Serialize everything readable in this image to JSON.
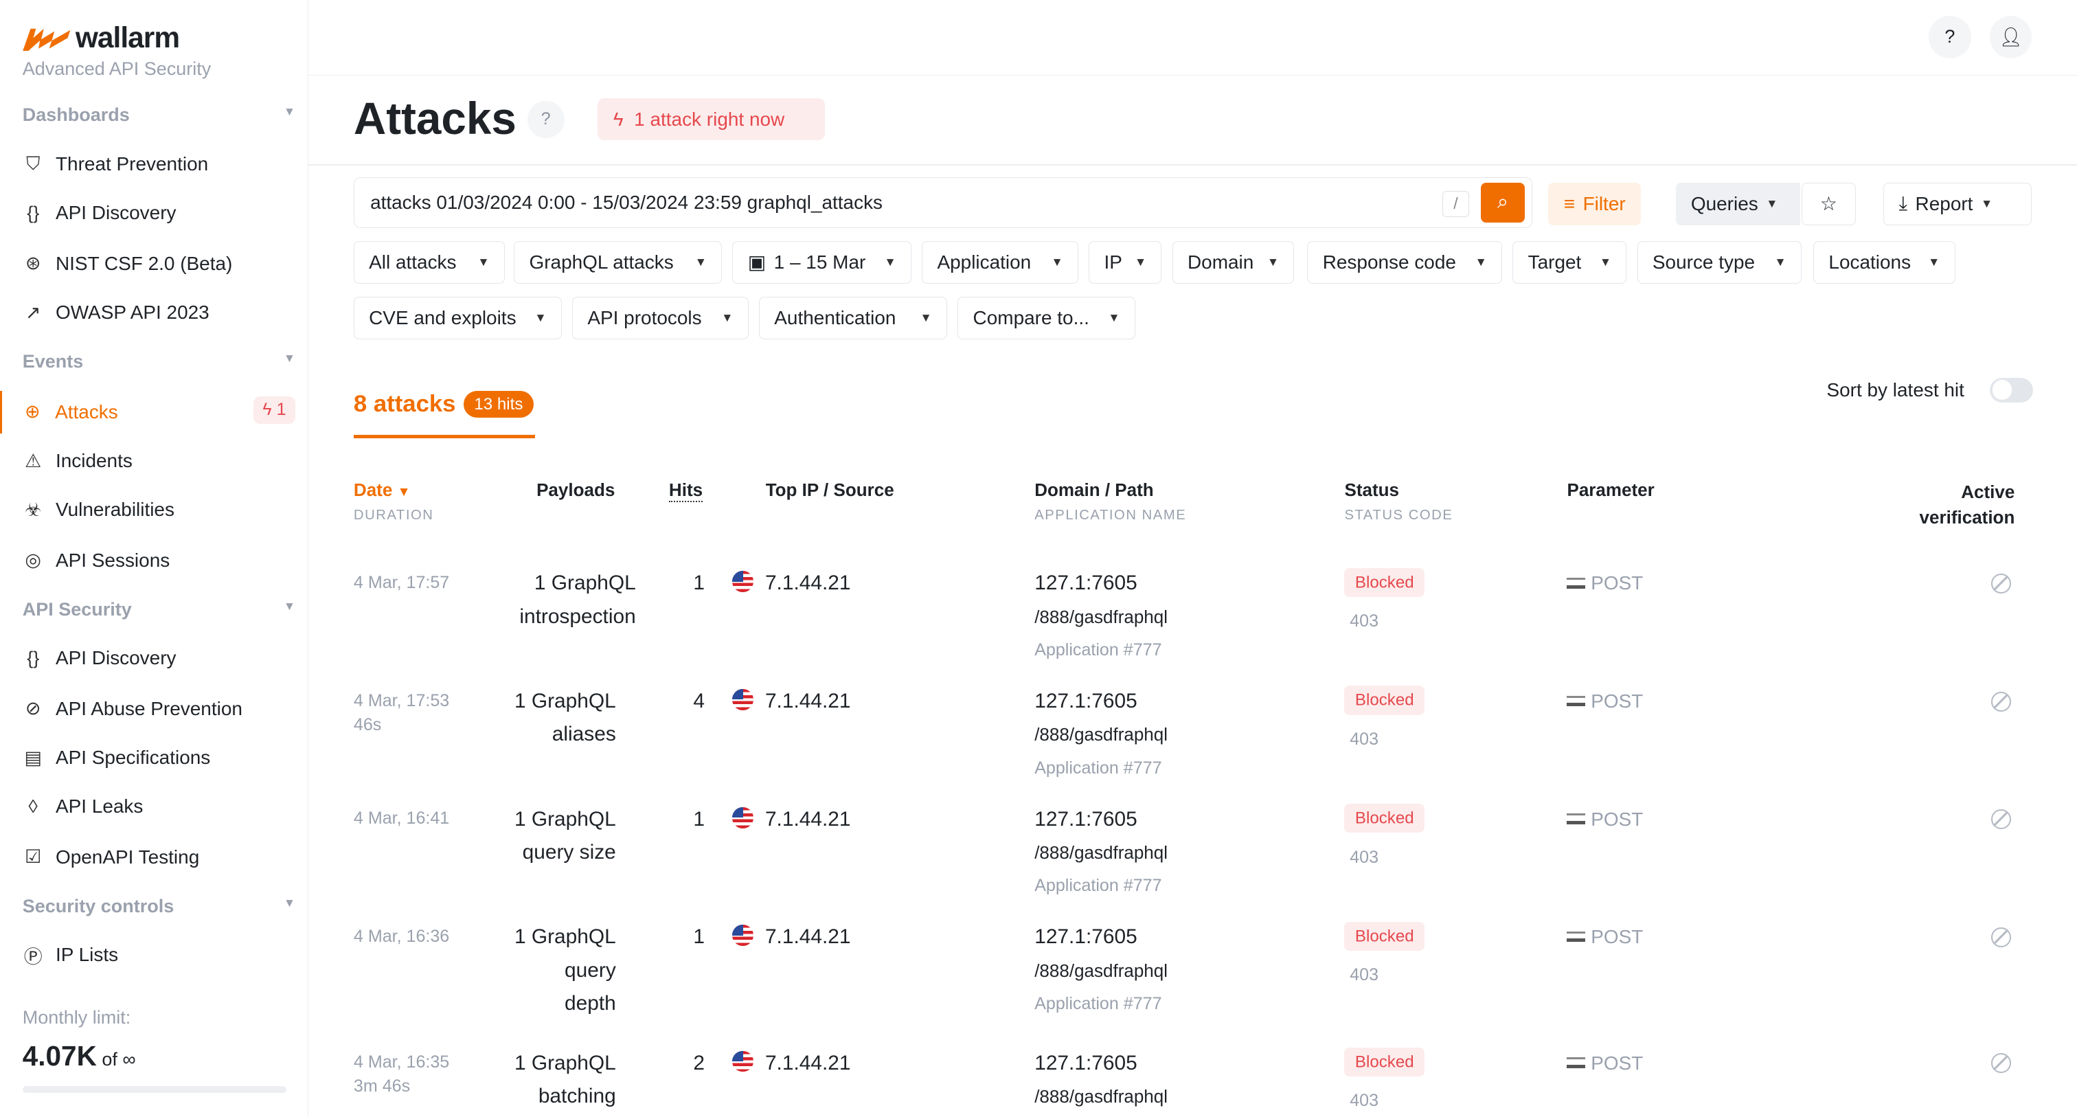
{
  "brand": {
    "name": "wallarm",
    "tagline": "Advanced API Security",
    "accent": "#f06e00"
  },
  "sidebar": {
    "sections": [
      {
        "label": "Dashboards",
        "items": [
          {
            "label": "Threat Prevention",
            "icon": "shield-icon"
          },
          {
            "label": "API Discovery",
            "icon": "braces-check-icon"
          },
          {
            "label": "NIST CSF 2.0 (Beta)",
            "icon": "globe-icon"
          },
          {
            "label": "OWASP API 2023",
            "icon": "arrow-icon"
          }
        ]
      },
      {
        "label": "Events",
        "items": [
          {
            "label": "Attacks",
            "icon": "target-icon",
            "active": true,
            "badge": "1"
          },
          {
            "label": "Incidents",
            "icon": "warning-icon"
          },
          {
            "label": "Vulnerabilities",
            "icon": "biohazard-icon"
          },
          {
            "label": "API Sessions",
            "icon": "fingerprint-icon"
          }
        ]
      },
      {
        "label": "API Security",
        "items": [
          {
            "label": "API Discovery",
            "icon": "braces-check-icon"
          },
          {
            "label": "API Abuse Prevention",
            "icon": "robot-off-icon"
          },
          {
            "label": "API Specifications",
            "icon": "document-icon"
          },
          {
            "label": "API Leaks",
            "icon": "drop-icon"
          },
          {
            "label": "OpenAPI Testing",
            "icon": "checklist-icon"
          }
        ]
      },
      {
        "label": "Security controls",
        "items": [
          {
            "label": "IP Lists",
            "icon": "ip-icon"
          }
        ]
      }
    ],
    "limit": {
      "label": "Monthly limit:",
      "value": "4.07K",
      "of": "of ∞"
    }
  },
  "header": {
    "title": "Attacks",
    "live": "1 attack right now"
  },
  "search": {
    "query": "attacks 01/03/2024 0:00 - 15/03/2024 23:59 graphql_attacks",
    "shortcut": "/"
  },
  "toolbar": {
    "filter": "Filter",
    "queries": "Queries",
    "report": "Report"
  },
  "filters": [
    "All attacks",
    "GraphQL attacks",
    "1 – 15 Mar",
    "Application",
    "IP",
    "Domain",
    "Response code",
    "Target",
    "Source type",
    "Locations",
    "CVE and exploits",
    "API protocols",
    "Authentication",
    "Compare to..."
  ],
  "summary": {
    "count": "8 attacks",
    "hits": "13 hits",
    "sort_label": "Sort by latest hit",
    "sort_on": false
  },
  "table": {
    "headers": {
      "date": "Date",
      "date_sub": "DURATION",
      "payloads": "Payloads",
      "hits": "Hits",
      "ip": "Top IP / Source",
      "domain": "Domain / Path",
      "domain_sub": "APPLICATION NAME",
      "status": "Status",
      "status_sub": "STATUS CODE",
      "param": "Parameter",
      "verif1": "Active",
      "verif2": "verification"
    },
    "rows": [
      {
        "date": "4 Mar, 17:57",
        "duration": "",
        "payload1": "1 GraphQL",
        "payload2": "introspection",
        "payload3": "",
        "hits": "1",
        "ip": "7.1.44.21",
        "domain": "127.1:7605",
        "path": "/888/gasdfraphql",
        "app": "Application #777",
        "status": "Blocked",
        "code": "403",
        "param": "POST"
      },
      {
        "date": "4 Mar, 17:53",
        "duration": "46s",
        "payload1": "1 GraphQL",
        "payload2": "aliases",
        "payload3": "",
        "hits": "4",
        "ip": "7.1.44.21",
        "domain": "127.1:7605",
        "path": "/888/gasdfraphql",
        "app": "Application #777",
        "status": "Blocked",
        "code": "403",
        "param": "POST"
      },
      {
        "date": "4 Mar, 16:41",
        "duration": "",
        "payload1": "1 GraphQL",
        "payload2": "query size",
        "payload3": "",
        "hits": "1",
        "ip": "7.1.44.21",
        "domain": "127.1:7605",
        "path": "/888/gasdfraphql",
        "app": "Application #777",
        "status": "Blocked",
        "code": "403",
        "param": "POST"
      },
      {
        "date": "4 Mar, 16:36",
        "duration": "",
        "payload1": "1 GraphQL",
        "payload2": "query",
        "payload3": "depth",
        "hits": "1",
        "ip": "7.1.44.21",
        "domain": "127.1:7605",
        "path": "/888/gasdfraphql",
        "app": "Application #777",
        "status": "Blocked",
        "code": "403",
        "param": "POST"
      },
      {
        "date": "4 Mar, 16:35",
        "duration": "3m 46s",
        "payload1": "1 GraphQL",
        "payload2": "batching",
        "payload3": "",
        "hits": "2",
        "ip": "7.1.44.21",
        "domain": "127.1:7605",
        "path": "/888/gasdfraphql",
        "app": "",
        "status": "Blocked",
        "code": "403",
        "param": "POST"
      }
    ]
  }
}
